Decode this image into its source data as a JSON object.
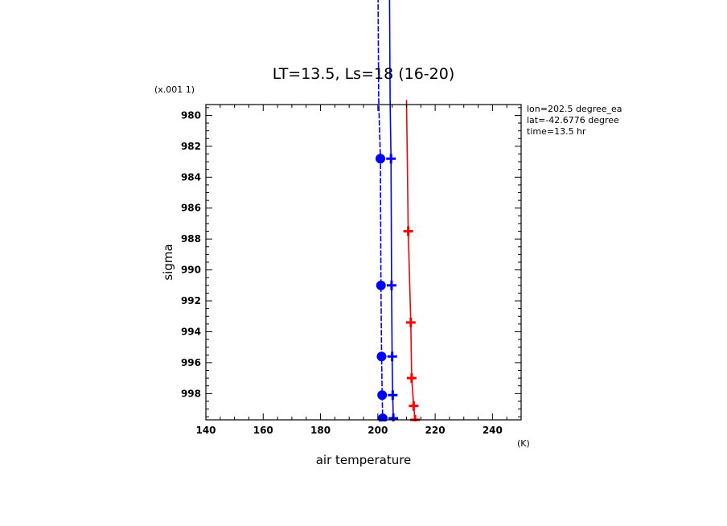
{
  "chart_data": {
    "type": "line",
    "title": "LT=13.5, Ls=18 (16-20)",
    "xlabel": "air temperature",
    "xunit": "(K)",
    "ylabel": "sigma",
    "yscale_label": "(x.001 1)",
    "xlim": [
      140,
      250
    ],
    "ylim": [
      979.3,
      999.7
    ],
    "y_inverted": true,
    "grid": false,
    "x_ticks": [
      140,
      160,
      180,
      200,
      220,
      240
    ],
    "y_ticks": [
      980,
      982,
      984,
      986,
      988,
      990,
      992,
      994,
      996,
      998
    ],
    "annotations": [
      "lon=202.5 degree_ea",
      "lat=-42.6776 degree",
      "time=13.5 hr"
    ],
    "colors": {
      "blue": "#0000ff",
      "red": "#ff0000"
    },
    "series": [
      {
        "color": "#0000ff",
        "marker": "circle",
        "dashed": true,
        "points": [
          [
            200.0,
            970.0
          ],
          [
            200.3,
            979.0
          ],
          [
            200.9,
            982.8
          ],
          [
            201.1,
            991.0
          ],
          [
            201.3,
            995.6
          ],
          [
            201.5,
            998.1
          ],
          [
            201.7,
            999.6
          ]
        ]
      },
      {
        "color": "#0000ff",
        "marker": "plus",
        "dashed": false,
        "points": [
          [
            204.0,
            970.0
          ],
          [
            204.3,
            979.0
          ],
          [
            204.6,
            982.8
          ],
          [
            204.8,
            991.0
          ],
          [
            205.0,
            995.6
          ],
          [
            205.2,
            998.1
          ],
          [
            205.4,
            999.6
          ]
        ]
      },
      {
        "color": "#ff0000",
        "marker": "plus",
        "dashed": false,
        "points": [
          [
            210.0,
            979.0
          ],
          [
            210.6,
            987.5
          ],
          [
            211.5,
            993.4
          ],
          [
            211.8,
            997.0
          ],
          [
            212.5,
            998.8
          ],
          [
            213.0,
            999.7
          ]
        ]
      }
    ]
  }
}
